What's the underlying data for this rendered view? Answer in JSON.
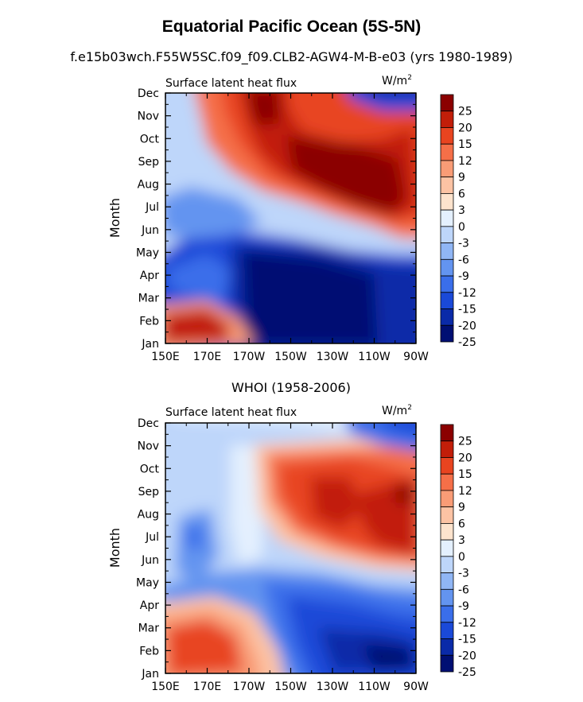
{
  "title": "Equatorial Pacific Ocean (5S-5N)",
  "subtitle": "f.e15b03wch.F55W5SC.f09_f09.CLB2-AGW4-M-B-e03 (yrs 1980-1989)",
  "chart_data": [
    {
      "type": "heatmap",
      "panel_title": "",
      "left_label": "Surface latent heat flux",
      "right_label": "W/m",
      "right_label_sup": "2",
      "ylabel": "Month",
      "xlabel": "",
      "x_ticks": [
        "150E",
        "170E",
        "170W",
        "150W",
        "130W",
        "110W",
        "90W"
      ],
      "x_values": [
        150,
        170,
        190,
        210,
        230,
        250,
        270
      ],
      "xlim": [
        150,
        270
      ],
      "y_ticks": [
        "Jan",
        "Feb",
        "Mar",
        "Apr",
        "May",
        "Jun",
        "Jul",
        "Aug",
        "Sep",
        "Oct",
        "Nov",
        "Dec"
      ],
      "colorbar_levels": [
        -25,
        -20,
        -15,
        -12,
        -9,
        -6,
        -3,
        0,
        3,
        6,
        9,
        12,
        15,
        20,
        25
      ],
      "colorbar_labels": [
        "25",
        "20",
        "15",
        "12",
        "9",
        "6",
        "3",
        "0",
        "-3",
        "-6",
        "-9",
        "-12",
        "-15",
        "-20",
        "-25"
      ]
    },
    {
      "type": "heatmap",
      "panel_title": "WHOI (1958-2006)",
      "left_label": "Surface latent heat flux",
      "right_label": "W/m",
      "right_label_sup": "2",
      "ylabel": "Month",
      "xlabel": "",
      "x_ticks": [
        "150E",
        "170E",
        "170W",
        "150W",
        "130W",
        "110W",
        "90W"
      ],
      "x_values": [
        150,
        170,
        190,
        210,
        230,
        250,
        270
      ],
      "xlim": [
        150,
        270
      ],
      "y_ticks": [
        "Jan",
        "Feb",
        "Mar",
        "Apr",
        "May",
        "Jun",
        "Jul",
        "Aug",
        "Sep",
        "Oct",
        "Nov",
        "Dec"
      ],
      "colorbar_levels": [
        -25,
        -20,
        -15,
        -12,
        -9,
        -6,
        -3,
        0,
        3,
        6,
        9,
        12,
        15,
        20,
        25
      ],
      "colorbar_labels": [
        "25",
        "20",
        "15",
        "12",
        "9",
        "6",
        "3",
        "0",
        "-3",
        "-6",
        "-9",
        "-12",
        "-15",
        "-20",
        "-25"
      ]
    }
  ],
  "colors": {
    "scale": [
      "#000f73",
      "#0a2aa8",
      "#1a49d8",
      "#3a6eea",
      "#6394f0",
      "#90b6f5",
      "#bed6fa",
      "#e4f0fe",
      "#fde3cd",
      "#fcc3a4",
      "#f99c76",
      "#f56f48",
      "#e84420",
      "#c21e09",
      "#8b0000"
    ]
  }
}
